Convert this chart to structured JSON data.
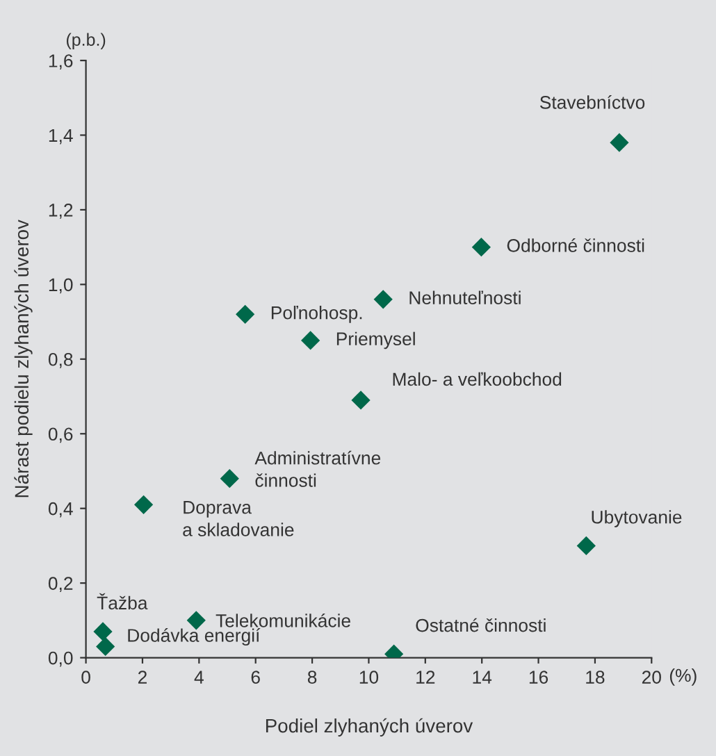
{
  "chart_data": {
    "type": "scatter",
    "xlabel": "Podiel zlyhaných úverov",
    "ylabel": "Nárast podielu zlyhaných úverov",
    "x": [
      18.86,
      13.98,
      10.51,
      5.63,
      7.94,
      9.72,
      5.08,
      2.04,
      17.69,
      0.6,
      0.69,
      3.9,
      10.89
    ],
    "series": [
      {
        "color": "#00684a",
        "values": [
          1.38,
          1.1,
          0.96,
          0.92,
          0.85,
          0.69,
          0.48,
          0.41,
          0.3,
          0.07,
          0.03,
          0.1,
          0.01
        ]
      }
    ],
    "marker": "diamond",
    "xlim": [
      0,
      20
    ],
    "xticks": [
      0,
      2,
      4,
      6,
      8,
      10,
      12,
      14,
      16,
      18,
      20
    ],
    "ylim": [
      0,
      1.6
    ],
    "yticks": [
      {
        "value": 0,
        "label": "0,0"
      },
      {
        "value": 0.2,
        "label": "0,2"
      },
      {
        "value": 0.4,
        "label": "0,4"
      },
      {
        "value": 0.6,
        "label": "0,6"
      },
      {
        "value": 0.8,
        "label": "0,8"
      },
      {
        "value": 1.0,
        "label": "1,0"
      },
      {
        "value": 1.2,
        "label": "1,2"
      },
      {
        "value": 1.4,
        "label": "1,4"
      },
      {
        "value": 1.6,
        "label": "1,6"
      }
    ],
    "grid": false,
    "annotations": [
      {
        "text": "Stavebníctvo",
        "x": 18.86,
        "y": 1.38
      },
      {
        "text": "Odborné činnosti",
        "x": 13.98,
        "y": 1.1
      },
      {
        "text": "Nehnuteľnosti",
        "x": 10.51,
        "y": 0.96
      },
      {
        "text": "Poľnohosp.",
        "x": 5.63,
        "y": 0.92
      },
      {
        "text": "Priemysel",
        "x": 7.94,
        "y": 0.85
      },
      {
        "text": "Malo- a veľkoobchod",
        "x": 9.72,
        "y": 0.69
      },
      {
        "text": "Administratívne\nčinnosti",
        "x": 5.08,
        "y": 0.48
      },
      {
        "text": "Doprava\na skladovanie",
        "x": 2.04,
        "y": 0.41
      },
      {
        "text": "Ubytovanie",
        "x": 17.69,
        "y": 0.3
      },
      {
        "text": "Ťažba",
        "x": 0.6,
        "y": 0.07
      },
      {
        "text": "Dodávka energií",
        "x": 0.69,
        "y": 0.03
      },
      {
        "text": "Telekomunikácie",
        "x": 3.9,
        "y": 0.1
      },
      {
        "text": "Ostatné činnosti",
        "x": 10.89,
        "y": 0.01
      },
      "(%)",
      "(p.b.)"
    ]
  }
}
